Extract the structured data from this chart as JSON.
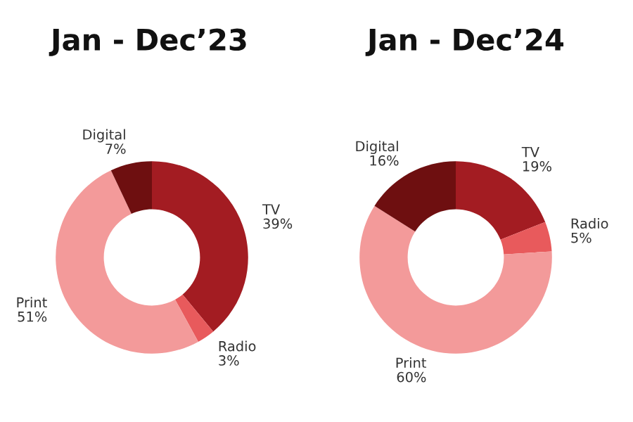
{
  "chart_data": [
    {
      "type": "donut",
      "title": "Jan - Dec’23",
      "categories": [
        "TV",
        "Radio",
        "Print",
        "Digital"
      ],
      "values": [
        39,
        3,
        51,
        7
      ],
      "value_labels": [
        "39%",
        "3%",
        "51%",
        "7%"
      ],
      "colors": [
        "#a31c22",
        "#e85a5c",
        "#f39a9a",
        "#6e0f10"
      ]
    },
    {
      "type": "donut",
      "title": "Jan - Dec’24",
      "categories": [
        "TV",
        "Radio",
        "Print",
        "Digital"
      ],
      "values": [
        19,
        5,
        60,
        16
      ],
      "value_labels": [
        "19%",
        "5%",
        "60%",
        "16%"
      ],
      "colors": [
        "#a31c22",
        "#e85a5c",
        "#f39a9a",
        "#6e0f10"
      ]
    }
  ]
}
